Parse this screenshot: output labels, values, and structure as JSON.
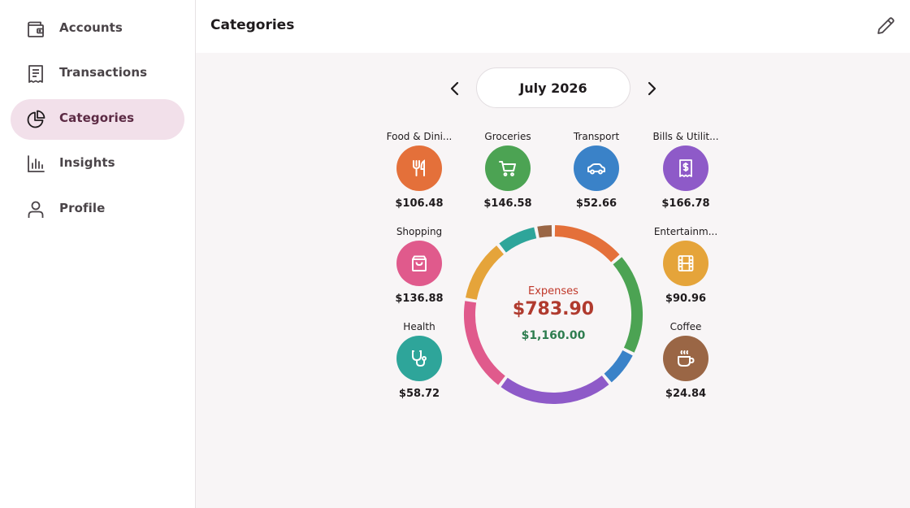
{
  "sidebar": {
    "items": [
      {
        "label": "Accounts",
        "icon": "wallet-icon",
        "active": false
      },
      {
        "label": "Transactions",
        "icon": "receipt-icon",
        "active": false
      },
      {
        "label": "Categories",
        "icon": "pie-chart-icon",
        "active": true
      },
      {
        "label": "Insights",
        "icon": "bar-chart-icon",
        "active": false
      },
      {
        "label": "Profile",
        "icon": "person-icon",
        "active": false
      }
    ]
  },
  "header": {
    "title": "Categories",
    "edit_icon": "pencil-icon"
  },
  "month": {
    "label": "July 2026",
    "prev_icon": "chevron-left-icon",
    "next_icon": "chevron-right-icon"
  },
  "categories": [
    {
      "name": "Food & Dini...",
      "amount": "$106.48",
      "value": 106.48,
      "color": "#e4703a",
      "icon": "fork-knife-icon"
    },
    {
      "name": "Groceries",
      "amount": "$146.58",
      "value": 146.58,
      "color": "#4ca353",
      "icon": "cart-icon"
    },
    {
      "name": "Transport",
      "amount": "$52.66",
      "value": 52.66,
      "color": "#3a82c8",
      "icon": "car-icon"
    },
    {
      "name": "Bills & Utilit...",
      "amount": "$166.78",
      "value": 166.78,
      "color": "#8e5ac8",
      "icon": "bill-icon"
    },
    {
      "name": "Shopping",
      "amount": "$136.88",
      "value": 136.88,
      "color": "#e05a8c",
      "icon": "shopping-bag-icon"
    },
    {
      "name": "Entertainm...",
      "amount": "$90.96",
      "value": 90.96,
      "color": "#e5a43a",
      "icon": "film-icon"
    },
    {
      "name": "Health",
      "amount": "$58.72",
      "value": 58.72,
      "color": "#2ea59a",
      "icon": "stethoscope-icon"
    },
    {
      "name": "Coffee",
      "amount": "$24.84",
      "value": 24.84,
      "color": "#9a6645",
      "icon": "coffee-cup-icon"
    }
  ],
  "summary": {
    "expenses_label": "Expenses",
    "expenses_total": "$783.90",
    "income_total": "$1,160.00",
    "expenses_color": "#b03a2e",
    "income_color": "#2e7d4f"
  }
}
